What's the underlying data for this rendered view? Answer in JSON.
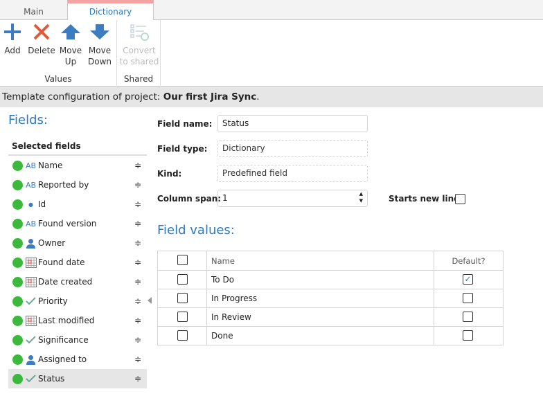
{
  "tabs": [
    {
      "label": "Main"
    },
    {
      "label": "Dictionary"
    }
  ],
  "ribbon": {
    "values_group": "Values",
    "shared_group": "Shared",
    "add": "Add",
    "delete": "Delete",
    "move_up_1": "Move",
    "move_up_2": "Up",
    "move_down_1": "Move",
    "move_down_2": "Down",
    "convert_1": "Convert",
    "convert_2": "to shared"
  },
  "banner": {
    "prefix": "Template configuration of project: ",
    "project": "Our first Jira Sync",
    "suffix": "."
  },
  "fields": {
    "title": "Fields:",
    "header": "Selected fields",
    "items": [
      {
        "label": "Name",
        "type": "text"
      },
      {
        "label": "Reported by",
        "type": "text"
      },
      {
        "label": "Id",
        "type": "id"
      },
      {
        "label": "Found version",
        "type": "text"
      },
      {
        "label": "Owner",
        "type": "user"
      },
      {
        "label": "Found date",
        "type": "date"
      },
      {
        "label": "Date created",
        "type": "date"
      },
      {
        "label": "Priority",
        "type": "dictionary"
      },
      {
        "label": "Last modified",
        "type": "date"
      },
      {
        "label": "Significance",
        "type": "dictionary"
      },
      {
        "label": "Assigned to",
        "type": "user"
      },
      {
        "label": "Status",
        "type": "dictionary",
        "selected": true
      }
    ]
  },
  "form": {
    "field_name_label": "Field name:",
    "field_name": "Status",
    "field_type_label": "Field type:",
    "field_type": "Dictionary",
    "kind_label": "Kind:",
    "kind": "Predefined field",
    "column_span_label": "Column span:",
    "column_span": "1",
    "starts_new_line_label": "Starts new line:",
    "starts_new_line": false
  },
  "values": {
    "title": "Field values:",
    "col_name": "Name",
    "col_default": "Default?",
    "rows": [
      {
        "name": "To Do",
        "default": true
      },
      {
        "name": "In Progress",
        "default": false
      },
      {
        "name": "In Review",
        "default": false
      },
      {
        "name": "Done",
        "default": false
      }
    ]
  },
  "colors": {
    "accent": "#2b79c2",
    "status_dot": "#3cb83c",
    "tab_highlight": "#f4a3a3"
  }
}
